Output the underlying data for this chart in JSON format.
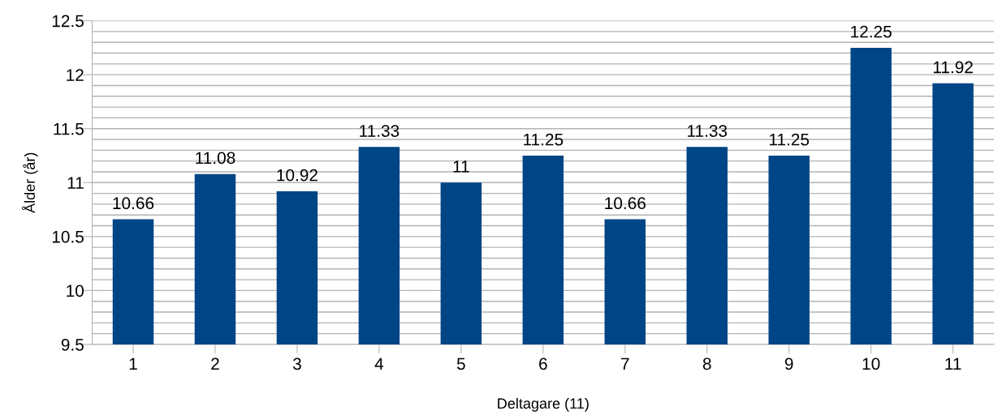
{
  "chart_data": {
    "type": "bar",
    "xlabel": "Deltagare (11)",
    "ylabel": "Ålder (år)",
    "categories": [
      "1",
      "2",
      "3",
      "4",
      "5",
      "6",
      "7",
      "8",
      "9",
      "10",
      "11"
    ],
    "values": [
      10.66,
      11.08,
      10.92,
      11.33,
      11,
      11.25,
      10.66,
      11.33,
      11.25,
      12.25,
      11.92
    ],
    "color": "#004586",
    "data_labels": true,
    "grid": "y",
    "ylim": [
      9.5,
      12.5
    ],
    "yticks": [
      9.5,
      {
        "value": 9.6,
        "label": null
      },
      {
        "value": 9.7,
        "label": null
      },
      {
        "value": 9.8,
        "label": null
      },
      {
        "value": 9.9,
        "label": null
      },
      10,
      {
        "value": 10.1,
        "label": null
      },
      {
        "value": 10.2,
        "label": null
      },
      {
        "value": 10.3,
        "label": null
      },
      {
        "value": 10.4,
        "label": null
      },
      10.5,
      {
        "value": 10.6,
        "label": null
      },
      {
        "value": 10.7,
        "label": null
      },
      {
        "value": 10.8,
        "label": null
      },
      {
        "value": 10.9,
        "label": null
      },
      11,
      {
        "value": 11.1,
        "label": null
      },
      {
        "value": 11.2,
        "label": null
      },
      {
        "value": 11.3,
        "label": null
      },
      {
        "value": 11.4,
        "label": null
      },
      11.5,
      {
        "value": 11.6,
        "label": null
      },
      {
        "value": 11.7,
        "label": null
      },
      {
        "value": 11.8,
        "label": null
      },
      {
        "value": 11.9,
        "label": null
      },
      12,
      {
        "value": 12.1,
        "label": null
      },
      {
        "value": 12.2,
        "label": null
      },
      {
        "value": 12.3,
        "label": null
      },
      {
        "value": 12.4,
        "label": null
      },
      12.5
    ]
  }
}
